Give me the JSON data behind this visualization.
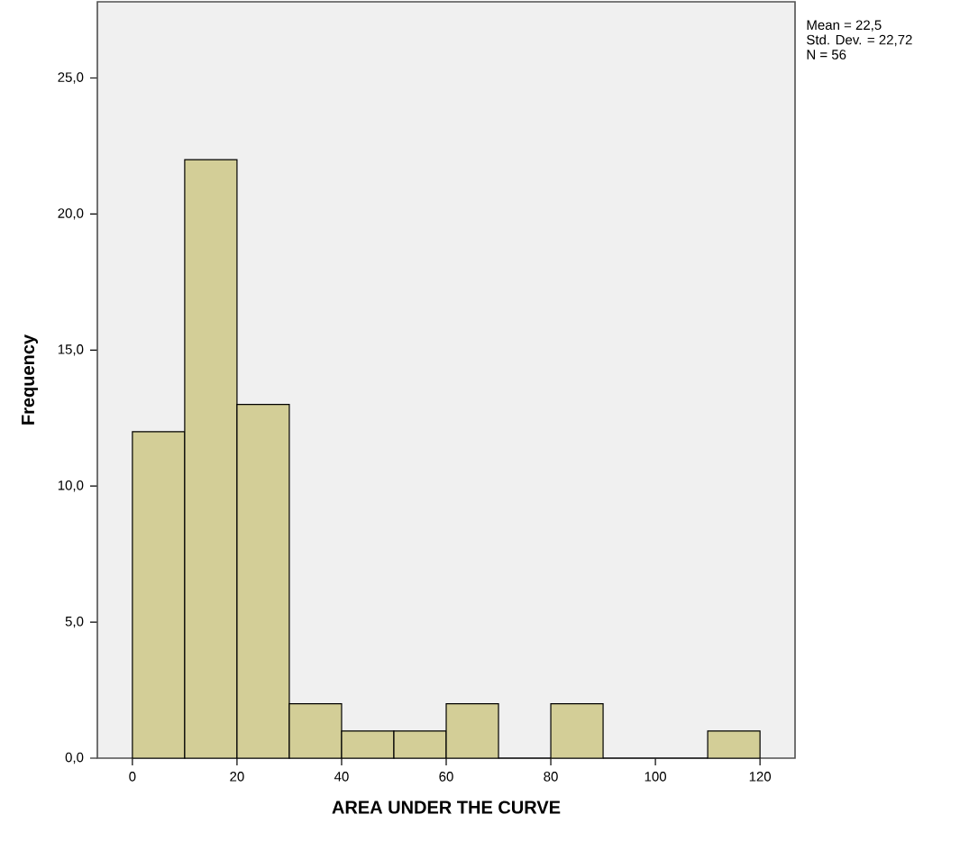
{
  "chart_data": {
    "type": "histogram",
    "xlabel": "AREA UNDER THE CURVE",
    "ylabel": "Frequency",
    "bins": [
      0,
      10,
      20,
      30,
      40,
      50,
      60,
      70,
      80,
      90,
      100,
      110,
      120
    ],
    "values": [
      12,
      22,
      13,
      2,
      1,
      1,
      2,
      0,
      2,
      0,
      0,
      1
    ],
    "color": "#d3ce97",
    "xlim": [
      -6.7,
      126.7
    ],
    "ylim": [
      0,
      27.8
    ],
    "xticks": [
      0,
      20,
      40,
      60,
      80,
      100,
      120
    ],
    "yticks": [
      {
        "value": 0,
        "label": "0,0"
      },
      {
        "value": 5,
        "label": "5,0"
      },
      {
        "value": 10,
        "label": "10,0"
      },
      {
        "value": 15,
        "label": "15,0"
      },
      {
        "value": 20,
        "label": "20,0"
      },
      {
        "value": 25,
        "label": "25,0"
      }
    ],
    "annotations": [
      "Mean = 22,5",
      "Std. Dev. = 22,72",
      "N = 56"
    ],
    "grid": false
  }
}
